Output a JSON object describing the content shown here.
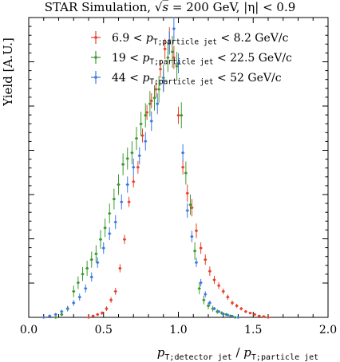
{
  "chart_data": {
    "type": "scatter",
    "title": "STAR Simulation, √s = 200 GeV, |η| < 0.9",
    "title_parts": {
      "prefix": "STAR Simulation, ",
      "sqrt": "√",
      "s": "s",
      "energy": " = 200 GeV, ",
      "eta": "|η| < 0.9"
    },
    "xlabel": "p_T;detector jet / p_T;particle jet",
    "xlabel_parts": {
      "p": "p",
      "sub_num": "T;detector jet",
      "slash": " / ",
      "sub_den": "T;particle jet"
    },
    "ylabel": "Yield [A.U.]",
    "xlim": [
      0.0,
      2.0
    ],
    "ylim": [
      0,
      1.0
    ],
    "x_ticks": [
      "0.0",
      "0.5",
      "1.0",
      "1.5",
      "2.0"
    ],
    "y_tick_labels_shown": false,
    "grid": false,
    "legend_position": "top-right",
    "series": [
      {
        "name": "6.9 < p_T;particle jet < 8.2 GeV/c",
        "label_parts": {
          "low": "6.9 < ",
          "p": "p",
          "sub": "T;particle jet",
          "high": " < 8.2 GeV/c"
        },
        "color": "#e8402a",
        "x": [
          0.4,
          0.43,
          0.46,
          0.49,
          0.52,
          0.55,
          0.58,
          0.61,
          0.64,
          0.67,
          0.7,
          0.73,
          0.76,
          0.79,
          0.82,
          0.85,
          0.88,
          0.91,
          0.94,
          0.97,
          1.0,
          1.03,
          1.06,
          1.09,
          1.12,
          1.15,
          1.18,
          1.21,
          1.24,
          1.27,
          1.3,
          1.33,
          1.36,
          1.39,
          1.42,
          1.45,
          1.48,
          1.51,
          1.54,
          1.57,
          1.6
        ],
        "y": [
          0.0,
          0.005,
          0.01,
          0.015,
          0.03,
          0.06,
          0.09,
          0.17,
          0.27,
          0.4,
          0.47,
          0.52,
          0.63,
          0.71,
          0.75,
          0.79,
          0.86,
          0.93,
          0.96,
          0.9,
          0.7,
          0.52,
          0.43,
          0.38,
          0.3,
          0.24,
          0.2,
          0.16,
          0.13,
          0.11,
          0.09,
          0.07,
          0.05,
          0.04,
          0.03,
          0.02,
          0.015,
          0.01,
          0.005,
          0.003,
          0.0
        ],
        "err": [
          0.003,
          0.004,
          0.005,
          0.006,
          0.008,
          0.01,
          0.012,
          0.014,
          0.016,
          0.018,
          0.02,
          0.022,
          0.024,
          0.026,
          0.026,
          0.028,
          0.03,
          0.035,
          0.045,
          0.04,
          0.03,
          0.025,
          0.03,
          0.03,
          0.025,
          0.02,
          0.018,
          0.016,
          0.014,
          0.012,
          0.01,
          0.009,
          0.008,
          0.007,
          0.006,
          0.005,
          0.004,
          0.004,
          0.003,
          0.003,
          0.003
        ]
      },
      {
        "name": "19 < p_T;particle jet < 22.5 GeV/c",
        "label_parts": {
          "low": "19 < ",
          "p": "p",
          "sub": "T;particle jet",
          "high": " < 22.5 GeV/c"
        },
        "color": "#3a9a2e",
        "x": [
          0.18,
          0.22,
          0.26,
          0.3,
          0.33,
          0.36,
          0.39,
          0.42,
          0.45,
          0.48,
          0.51,
          0.54,
          0.57,
          0.6,
          0.63,
          0.66,
          0.69,
          0.72,
          0.75,
          0.78,
          0.81,
          0.84,
          0.87,
          0.9,
          0.93,
          0.96,
          0.99,
          1.02,
          1.05,
          1.08,
          1.11,
          1.14,
          1.17,
          1.2,
          1.23,
          1.26,
          1.29,
          1.32,
          1.35,
          1.38
        ],
        "y": [
          0.0,
          0.01,
          0.03,
          0.09,
          0.12,
          0.15,
          0.17,
          0.2,
          0.22,
          0.27,
          0.31,
          0.36,
          0.41,
          0.46,
          0.53,
          0.55,
          0.57,
          0.62,
          0.67,
          0.7,
          0.74,
          0.76,
          0.79,
          0.83,
          0.9,
          0.92,
          0.87,
          0.7,
          0.5,
          0.39,
          0.23,
          0.1,
          0.06,
          0.04,
          0.03,
          0.02,
          0.015,
          0.01,
          0.005,
          0.0
        ],
        "err": [
          0.004,
          0.006,
          0.01,
          0.02,
          0.022,
          0.024,
          0.026,
          0.028,
          0.03,
          0.032,
          0.032,
          0.034,
          0.036,
          0.036,
          0.038,
          0.038,
          0.04,
          0.04,
          0.042,
          0.042,
          0.044,
          0.044,
          0.046,
          0.046,
          0.05,
          0.055,
          0.05,
          0.045,
          0.04,
          0.035,
          0.03,
          0.02,
          0.015,
          0.012,
          0.01,
          0.008,
          0.006,
          0.005,
          0.004,
          0.003
        ]
      },
      {
        "name": "44 < p_T;particle jet < 52 GeV/c",
        "label_parts": {
          "low": "44 < ",
          "p": "p",
          "sub": "T;particle jet",
          "high": " < 52 GeV/c"
        },
        "color": "#3a78e0",
        "x": [
          0.1,
          0.14,
          0.18,
          0.22,
          0.26,
          0.3,
          0.34,
          0.38,
          0.42,
          0.46,
          0.5,
          0.54,
          0.58,
          0.62,
          0.66,
          0.7,
          0.74,
          0.78,
          0.82,
          0.86,
          0.9,
          0.94,
          0.97,
          1.0,
          1.03,
          1.06,
          1.09,
          1.12,
          1.15,
          1.18,
          1.21,
          1.24,
          1.27,
          1.3,
          1.33,
          1.36,
          1.4
        ],
        "y": [
          0.0,
          0.005,
          0.01,
          0.02,
          0.03,
          0.05,
          0.07,
          0.1,
          0.14,
          0.19,
          0.24,
          0.29,
          0.33,
          0.4,
          0.46,
          0.52,
          0.56,
          0.61,
          0.68,
          0.74,
          0.82,
          0.95,
          1.0,
          0.88,
          0.57,
          0.37,
          0.28,
          0.19,
          0.12,
          0.08,
          0.05,
          0.03,
          0.02,
          0.012,
          0.008,
          0.004,
          0.0
        ],
        "err": [
          0.003,
          0.004,
          0.005,
          0.006,
          0.008,
          0.01,
          0.012,
          0.014,
          0.016,
          0.018,
          0.02,
          0.022,
          0.024,
          0.026,
          0.028,
          0.03,
          0.03,
          0.032,
          0.034,
          0.036,
          0.04,
          0.04,
          0.04,
          0.035,
          0.03,
          0.025,
          0.02,
          0.016,
          0.013,
          0.01,
          0.008,
          0.006,
          0.005,
          0.004,
          0.003,
          0.003,
          0.003
        ]
      }
    ]
  }
}
